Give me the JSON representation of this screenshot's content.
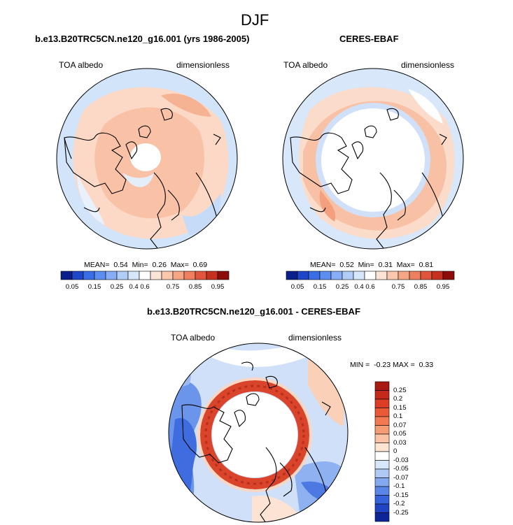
{
  "figure": {
    "title": "DJF"
  },
  "panels": [
    {
      "title": "b.e13.B20TRC5CN.ne120_g16.001 (yrs 1986-2005)",
      "variable": "TOA albedo",
      "units": "dimensionless",
      "stats": {
        "mean_label": "MEAN=",
        "mean": "0.54",
        "min_label": "Min=",
        "min": "0.26",
        "max_label": "Max=",
        "max": "0.69"
      }
    },
    {
      "title": "CERES-EBAF",
      "variable": "TOA albedo",
      "units": "dimensionless",
      "stats": {
        "mean_label": "MEAN=",
        "mean": "0.52",
        "min_label": "Min=",
        "min": "0.31",
        "max_label": "Max=",
        "max": "0.81"
      }
    },
    {
      "title": "b.e13.B20TRC5CN.ne120_g16.001 - CERES-EBAF",
      "variable": "TOA albedo",
      "units": "dimensionless",
      "stats": {
        "min_label": "MIN =",
        "min": "-0.23",
        "max_label": "MAX =",
        "max": "0.33"
      }
    }
  ],
  "colorbar_abs": {
    "ticks": [
      "0.05",
      "0.15",
      "0.25",
      "0.4",
      "0.6",
      "0.75",
      "0.85",
      "0.95"
    ],
    "colors": [
      "#0a1e8c",
      "#1e46c8",
      "#3a6ee6",
      "#5b8ef0",
      "#86adf5",
      "#b0cdf8",
      "#d6e6fb",
      "#ffffff",
      "#fde4d6",
      "#fbc7ad",
      "#f6a585",
      "#ee7f5f",
      "#e1553c",
      "#c7311f",
      "#8c0c0a"
    ]
  },
  "colorbar_diff": {
    "ticks": [
      "0.25",
      "0.2",
      "0.15",
      "0.1",
      "0.07",
      "0.05",
      "0.03",
      "0",
      "-0.03",
      "-0.05",
      "-0.07",
      "-0.1",
      "-0.15",
      "-0.2",
      "-0.25"
    ],
    "colors": [
      "#a81a12",
      "#c42a1a",
      "#dc3e25",
      "#ea5a36",
      "#f27a52",
      "#f69c75",
      "#fac3a3",
      "#fde4d3",
      "#ffffff",
      "#d8e6f9",
      "#afc9f4",
      "#84a9ef",
      "#5a86e7",
      "#3663dc",
      "#1f44c4",
      "#0e2597"
    ]
  },
  "colors": {
    "coast": "#000000",
    "ring_diff": "#d9442a",
    "pole_white": "#ffffff"
  }
}
